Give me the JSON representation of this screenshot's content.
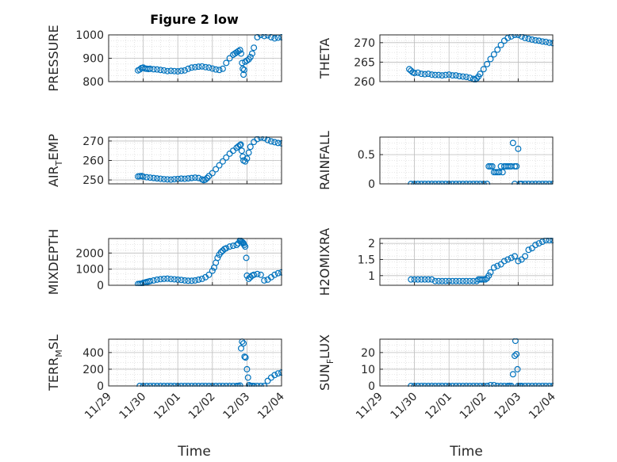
{
  "chart_data": {
    "type": "scatter",
    "title": "Figure 2 low",
    "marker": "open-circle",
    "color": "#0072BD",
    "grid": "minor-dotted",
    "x_ticks": [
      "11/29",
      "11/30",
      "12/01",
      "12/02",
      "12/03",
      "12/04"
    ],
    "xlabel": "Time",
    "panels": [
      {
        "name": "pressure",
        "ylabel": "PRESSURE",
        "ylim": [
          800,
          1000
        ],
        "yticks": [
          800,
          900,
          1000
        ],
        "x": [
          0.85,
          0.9,
          0.95,
          1.0,
          1.05,
          1.1,
          1.15,
          1.2,
          1.3,
          1.4,
          1.5,
          1.6,
          1.7,
          1.8,
          1.9,
          2.0,
          2.1,
          2.2,
          2.3,
          2.4,
          2.5,
          2.6,
          2.7,
          2.8,
          2.9,
          3.0,
          3.1,
          3.2,
          3.3,
          3.4,
          3.5,
          3.6,
          3.65,
          3.7,
          3.75,
          3.8,
          3.83,
          3.86,
          3.88,
          3.9,
          3.92,
          3.95,
          4.0,
          4.05,
          4.1,
          4.15,
          4.2,
          4.3,
          4.4,
          4.5,
          4.6,
          4.7,
          4.8,
          4.9,
          5.0
        ],
        "y": [
          848,
          852,
          858,
          860,
          856,
          855,
          854,
          855,
          853,
          852,
          850,
          848,
          845,
          846,
          845,
          844,
          846,
          848,
          855,
          860,
          862,
          864,
          865,
          862,
          860,
          856,
          852,
          850,
          855,
          880,
          900,
          915,
          920,
          925,
          930,
          935,
          920,
          880,
          855,
          830,
          850,
          885,
          890,
          895,
          905,
          920,
          945,
          990,
          1000,
          995,
          998,
          990,
          985,
          988,
          990
        ]
      },
      {
        "name": "theta",
        "ylabel": "THETA",
        "ylim": [
          260,
          272
        ],
        "yticks": [
          260,
          265,
          270
        ],
        "x": [
          0.85,
          0.9,
          0.95,
          1.0,
          1.1,
          1.2,
          1.3,
          1.4,
          1.5,
          1.6,
          1.7,
          1.8,
          1.9,
          2.0,
          2.1,
          2.2,
          2.3,
          2.4,
          2.5,
          2.6,
          2.7,
          2.75,
          2.8,
          2.85,
          2.9,
          3.0,
          3.1,
          3.2,
          3.3,
          3.4,
          3.5,
          3.6,
          3.7,
          3.8,
          3.9,
          4.0,
          4.1,
          4.2,
          4.3,
          4.4,
          4.5,
          4.6,
          4.7,
          4.8,
          4.9,
          5.0
        ],
        "y": [
          263.2,
          262.8,
          262.4,
          262.2,
          262.3,
          262.0,
          261.9,
          262.0,
          261.8,
          261.7,
          261.7,
          261.6,
          261.7,
          261.8,
          261.6,
          261.6,
          261.4,
          261.3,
          261.2,
          261.0,
          260.7,
          260.5,
          260.8,
          261.3,
          262.0,
          263.2,
          264.5,
          265.8,
          267.0,
          268.2,
          269.4,
          270.5,
          271.2,
          271.6,
          272.0,
          272.0,
          271.6,
          271.2,
          271.0,
          270.8,
          270.6,
          270.5,
          270.3,
          270.2,
          270.0,
          269.9
        ]
      },
      {
        "name": "air-temp",
        "ylabel": "AIR",
        "ylabel_sub": "T",
        "ylabel_tail": "EMP",
        "ylim": [
          248,
          272
        ],
        "yticks": [
          250,
          260,
          270
        ],
        "x": [
          0.85,
          0.9,
          0.95,
          1.0,
          1.1,
          1.2,
          1.3,
          1.4,
          1.5,
          1.6,
          1.7,
          1.8,
          1.9,
          2.0,
          2.1,
          2.2,
          2.3,
          2.4,
          2.5,
          2.6,
          2.7,
          2.75,
          2.8,
          2.85,
          2.9,
          3.0,
          3.1,
          3.2,
          3.3,
          3.4,
          3.5,
          3.6,
          3.7,
          3.75,
          3.8,
          3.82,
          3.85,
          3.88,
          3.9,
          3.95,
          4.0,
          4.05,
          4.1,
          4.2,
          4.3,
          4.4,
          4.5,
          4.6,
          4.7,
          4.8,
          4.9,
          5.0
        ],
        "y": [
          251.8,
          251.9,
          252.0,
          251.7,
          251.4,
          251.2,
          251.0,
          250.8,
          250.6,
          250.4,
          250.3,
          250.2,
          250.4,
          250.5,
          250.7,
          250.6,
          250.8,
          251.0,
          251.2,
          251.0,
          250.3,
          249.9,
          250.2,
          251.0,
          252.0,
          253.5,
          255.5,
          257.5,
          259.5,
          261.5,
          263.5,
          265.0,
          266.5,
          267.2,
          267.8,
          268.2,
          265.0,
          262.0,
          260.0,
          259.5,
          261.0,
          264.0,
          267.0,
          269.5,
          271.0,
          271.8,
          271.5,
          270.5,
          269.8,
          269.4,
          269.0,
          268.8
        ]
      },
      {
        "name": "rainfall",
        "ylabel": "RAINFALL",
        "ylim": [
          0,
          0.8
        ],
        "yticks": [
          0,
          0.5
        ],
        "x": [
          0.9,
          1.0,
          1.1,
          1.2,
          1.3,
          1.4,
          1.5,
          1.6,
          1.7,
          1.8,
          1.9,
          2.0,
          2.1,
          2.2,
          2.3,
          2.4,
          2.5,
          2.6,
          2.7,
          2.8,
          2.9,
          3.0,
          3.1,
          3.15,
          3.2,
          3.25,
          3.3,
          3.35,
          3.4,
          3.45,
          3.5,
          3.55,
          3.6,
          3.65,
          3.7,
          3.75,
          3.8,
          3.85,
          3.9,
          3.95,
          4.0,
          3.9,
          4.05,
          4.1,
          4.2,
          4.3,
          4.4,
          4.5,
          4.6,
          4.7,
          4.8,
          4.9,
          5.0
        ],
        "y": [
          0,
          0,
          0,
          0,
          0,
          0,
          0,
          0,
          0,
          0,
          0,
          0,
          0,
          0,
          0,
          0,
          0,
          0,
          0,
          0,
          0,
          0,
          0,
          0.3,
          0.3,
          0.3,
          0.2,
          0.2,
          0.2,
          0.2,
          0.3,
          0.2,
          0.3,
          0.3,
          0.3,
          0.3,
          0.3,
          0.7,
          0.3,
          0.3,
          0.6,
          0,
          0,
          0,
          0,
          0,
          0,
          0,
          0,
          0,
          0,
          0,
          0
        ]
      },
      {
        "name": "mixdepth",
        "ylabel": "MIXDEPTH",
        "ylim": [
          0,
          2900
        ],
        "yticks": [
          0,
          1000,
          2000
        ],
        "x": [
          0.85,
          0.9,
          0.95,
          1.0,
          1.05,
          1.1,
          1.15,
          1.2,
          1.3,
          1.4,
          1.5,
          1.6,
          1.7,
          1.8,
          1.9,
          2.0,
          2.1,
          2.2,
          2.3,
          2.4,
          2.5,
          2.6,
          2.7,
          2.8,
          2.9,
          3.0,
          3.05,
          3.1,
          3.15,
          3.2,
          3.25,
          3.3,
          3.35,
          3.4,
          3.5,
          3.6,
          3.7,
          3.75,
          3.8,
          3.82,
          3.85,
          3.88,
          3.9,
          3.92,
          3.95,
          3.98,
          4.0,
          4.05,
          4.1,
          4.15,
          4.2,
          4.3,
          4.4,
          4.5,
          4.6,
          4.7,
          4.8,
          4.9,
          5.0
        ],
        "y": [
          80,
          90,
          100,
          150,
          170,
          200,
          230,
          260,
          300,
          350,
          380,
          400,
          410,
          390,
          370,
          350,
          330,
          300,
          280,
          280,
          300,
          350,
          400,
          500,
          650,
          900,
          1100,
          1400,
          1700,
          1900,
          2050,
          2150,
          2250,
          2300,
          2400,
          2450,
          2500,
          2600,
          2800,
          2750,
          2700,
          2650,
          2600,
          2500,
          2400,
          1700,
          600,
          400,
          500,
          600,
          650,
          700,
          650,
          300,
          350,
          500,
          650,
          750,
          800
        ]
      },
      {
        "name": "h2o-mixing-ratio",
        "ylabel": "H2OMIXRA",
        "ylim": [
          0.7,
          2.15
        ],
        "yticks": [
          1,
          1.5,
          2
        ],
        "x": [
          0.9,
          1.0,
          1.1,
          1.2,
          1.3,
          1.4,
          1.5,
          1.6,
          1.7,
          1.8,
          1.9,
          2.0,
          2.1,
          2.2,
          2.3,
          2.4,
          2.5,
          2.6,
          2.7,
          2.8,
          2.85,
          2.9,
          2.95,
          3.0,
          3.05,
          3.1,
          3.15,
          3.2,
          3.3,
          3.4,
          3.5,
          3.6,
          3.7,
          3.8,
          3.9,
          4.0,
          4.1,
          4.2,
          4.3,
          4.4,
          4.5,
          4.6,
          4.7,
          4.8,
          4.9,
          5.0
        ],
        "y": [
          0.88,
          0.88,
          0.88,
          0.88,
          0.88,
          0.88,
          0.88,
          0.83,
          0.83,
          0.83,
          0.83,
          0.83,
          0.83,
          0.83,
          0.83,
          0.83,
          0.83,
          0.83,
          0.83,
          0.83,
          0.88,
          0.88,
          0.88,
          0.88,
          0.88,
          0.92,
          1.0,
          1.1,
          1.25,
          1.3,
          1.35,
          1.45,
          1.5,
          1.55,
          1.6,
          1.45,
          1.5,
          1.6,
          1.8,
          1.85,
          1.95,
          2.0,
          2.05,
          2.1,
          2.1,
          2.1
        ]
      },
      {
        "name": "terrain-msl",
        "ylabel": "TERR",
        "ylabel_sub": "M",
        "ylabel_tail": "SL",
        "ylim": [
          0,
          560
        ],
        "yticks": [
          0,
          200,
          400
        ],
        "x": [
          0.9,
          1.0,
          1.1,
          1.2,
          1.3,
          1.4,
          1.5,
          1.6,
          1.7,
          1.8,
          1.9,
          2.0,
          2.1,
          2.2,
          2.3,
          2.4,
          2.5,
          2.6,
          2.7,
          2.8,
          2.9,
          3.0,
          3.1,
          3.2,
          3.3,
          3.4,
          3.5,
          3.6,
          3.7,
          3.75,
          3.8,
          3.83,
          3.86,
          3.9,
          3.93,
          3.96,
          4.0,
          4.03,
          4.06,
          4.1,
          4.15,
          4.2,
          4.3,
          4.4,
          4.5,
          4.6,
          4.7,
          4.8,
          4.9,
          5.0
        ],
        "y": [
          0,
          0,
          0,
          0,
          0,
          0,
          0,
          0,
          0,
          0,
          0,
          0,
          0,
          0,
          0,
          0,
          0,
          0,
          0,
          0,
          0,
          0,
          0,
          0,
          0,
          0,
          0,
          0,
          0,
          0,
          5,
          450,
          530,
          510,
          350,
          340,
          200,
          100,
          10,
          0,
          0,
          0,
          0,
          0,
          0,
          60,
          100,
          130,
          150,
          160
        ]
      },
      {
        "name": "sun-flux",
        "ylabel": "SUN",
        "ylabel_sub": "F",
        "ylabel_tail": "LUX",
        "ylim": [
          0,
          28
        ],
        "yticks": [
          0,
          10,
          20
        ],
        "x": [
          0.9,
          1.0,
          1.1,
          1.2,
          1.3,
          1.4,
          1.5,
          1.6,
          1.7,
          1.8,
          1.9,
          2.0,
          2.1,
          2.2,
          2.3,
          2.4,
          2.5,
          2.6,
          2.7,
          2.8,
          2.9,
          3.0,
          3.1,
          3.2,
          3.3,
          3.4,
          3.5,
          3.6,
          3.7,
          3.75,
          3.8,
          3.85,
          3.9,
          3.92,
          3.95,
          3.98,
          4.0,
          4.05,
          4.1,
          4.2,
          4.3,
          4.4,
          4.5,
          4.6,
          4.7,
          4.8,
          4.9,
          5.0
        ],
        "y": [
          0,
          0,
          0,
          0,
          0,
          0,
          0,
          0,
          0,
          0,
          0,
          0,
          0,
          0,
          0,
          0,
          0,
          0,
          0,
          0,
          0,
          0,
          0,
          0.5,
          0.5,
          0,
          0,
          0,
          0,
          0,
          0,
          7,
          18,
          27,
          19,
          10,
          0,
          0,
          0,
          0,
          0,
          0,
          0,
          0,
          0,
          0,
          0,
          0
        ]
      }
    ]
  }
}
